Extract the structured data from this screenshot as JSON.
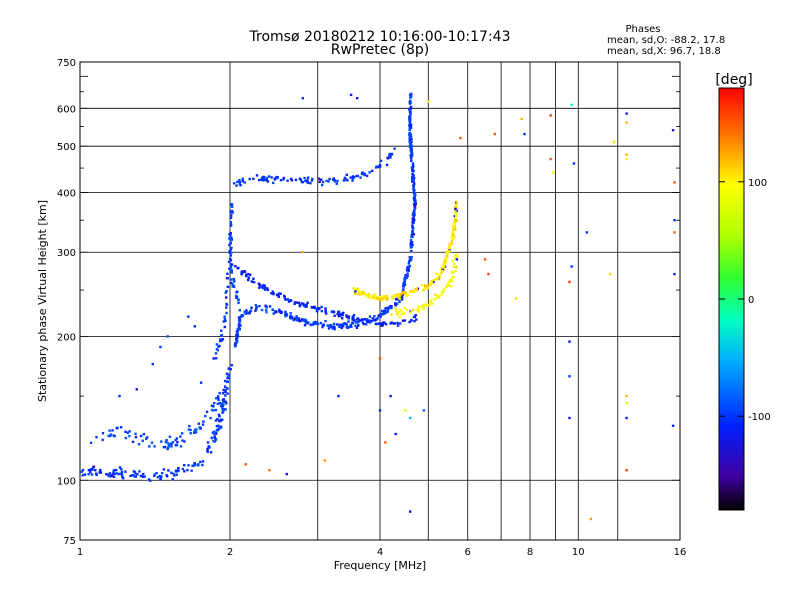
{
  "title": "Tromsø 20180212 10:16:00-10:17:43",
  "subtitle": "RwPretec (8p)",
  "stats": {
    "heading": "Phases",
    "line_o": "mean, sd,O: -88.2, 17.8",
    "line_x": "mean, sd,X:  96.7, 18.8"
  },
  "colorbar": {
    "unit": "[deg]",
    "ticks": [
      {
        "value": 100,
        "label": "100"
      },
      {
        "value": 0,
        "label": "0"
      },
      {
        "value": -100,
        "label": "-100"
      }
    ],
    "range": [
      -180,
      180
    ]
  },
  "chart_data": {
    "type": "scatter",
    "xlabel": "Frequency [MHz]",
    "ylabel": "Stationary phase Virtual Height [km]",
    "x_scale": "log",
    "y_scale": "log",
    "xlim": [
      1,
      16
    ],
    "ylim": [
      75,
      750
    ],
    "grid": true,
    "x_ticks": [
      {
        "value": 1,
        "label": "1"
      },
      {
        "value": 2,
        "label": "2"
      },
      {
        "value": 4,
        "label": "4"
      },
      {
        "value": 6,
        "label": "6"
      },
      {
        "value": 8,
        "label": "8"
      },
      {
        "value": 10,
        "label": "10"
      },
      {
        "value": 16,
        "label": "16"
      }
    ],
    "x_grid_extra": [
      3,
      5,
      7,
      9,
      12
    ],
    "y_ticks": [
      {
        "value": 75,
        "label": "75"
      },
      {
        "value": 100,
        "label": "100"
      },
      {
        "value": 200,
        "label": "200"
      },
      {
        "value": 300,
        "label": "300"
      },
      {
        "value": 400,
        "label": "400"
      },
      {
        "value": 500,
        "label": "500"
      },
      {
        "value": 600,
        "label": "600"
      },
      {
        "value": 750,
        "label": "750"
      }
    ],
    "traces": [
      {
        "points": [
          [
            1.0,
            105
          ],
          [
            1.15,
            103
          ],
          [
            1.3,
            103
          ],
          [
            1.45,
            102
          ],
          [
            1.6,
            104
          ],
          [
            1.75,
            110
          ],
          [
            1.85,
            120
          ],
          [
            1.95,
            145
          ],
          [
            2.0,
            175
          ]
        ],
        "phase": -100,
        "count": 180,
        "jx": 0.02,
        "jy": 0.035
      },
      {
        "points": [
          [
            1.05,
            120
          ],
          [
            1.2,
            128
          ],
          [
            1.4,
            118
          ],
          [
            1.6,
            120
          ],
          [
            1.8,
            135
          ],
          [
            1.95,
            150
          ]
        ],
        "phase": -95,
        "count": 90,
        "jx": 0.03,
        "jy": 0.05
      },
      {
        "points": [
          [
            1.85,
            175
          ],
          [
            1.95,
            210
          ],
          [
            2.0,
            300
          ],
          [
            2.02,
            380
          ]
        ],
        "phase": -100,
        "count": 60,
        "jx": 0.01,
        "jy": 0.03
      },
      {
        "points": [
          [
            2.05,
            190
          ],
          [
            2.1,
            220
          ],
          [
            2.25,
            230
          ],
          [
            2.5,
            225
          ],
          [
            2.8,
            215
          ],
          [
            3.2,
            210
          ],
          [
            3.6,
            212
          ],
          [
            4.0,
            220
          ],
          [
            4.4,
            240
          ],
          [
            4.6,
            290
          ],
          [
            4.7,
            380
          ],
          [
            4.65,
            450
          ],
          [
            4.6,
            520
          ],
          [
            4.6,
            640
          ]
        ],
        "phase": -98,
        "count": 460,
        "jx": 0.008,
        "jy": 0.025
      },
      {
        "points": [
          [
            2.05,
            280
          ],
          [
            2.3,
            255
          ],
          [
            2.7,
            235
          ],
          [
            3.2,
            225
          ],
          [
            3.7,
            215
          ],
          [
            4.3,
            212
          ],
          [
            4.8,
            218
          ]
        ],
        "phase": -110,
        "count": 160,
        "jx": 0.01,
        "jy": 0.02
      },
      {
        "points": [
          [
            2.05,
            420
          ],
          [
            2.3,
            430
          ],
          [
            2.7,
            425
          ],
          [
            3.1,
            420
          ],
          [
            3.5,
            430
          ],
          [
            3.8,
            440
          ],
          [
            4.1,
            460
          ],
          [
            4.3,
            500
          ]
        ],
        "phase": -100,
        "count": 110,
        "jx": 0.01,
        "jy": 0.025
      },
      {
        "points": [
          [
            2.0,
            330
          ],
          [
            2.02,
            260
          ],
          [
            2.1,
            230
          ]
        ],
        "phase": -90,
        "count": 40,
        "jx": 0.01,
        "jy": 0.04
      },
      {
        "points": [
          [
            3.5,
            250
          ],
          [
            4.0,
            240
          ],
          [
            4.5,
            245
          ],
          [
            5.0,
            255
          ],
          [
            5.3,
            270
          ],
          [
            5.6,
            320
          ],
          [
            5.7,
            380
          ]
        ],
        "phase": 105,
        "count": 210,
        "jx": 0.01,
        "jy": 0.02
      },
      {
        "points": [
          [
            4.2,
            225
          ],
          [
            4.7,
            225
          ],
          [
            5.2,
            240
          ],
          [
            5.6,
            265
          ],
          [
            5.7,
            300
          ]
        ],
        "phase": 95,
        "count": 80,
        "jx": 0.015,
        "jy": 0.03
      }
    ],
    "sparse_points": [
      [
        2.8,
        630,
        -100
      ],
      [
        3.5,
        640,
        -110
      ],
      [
        3.6,
        630,
        -110
      ],
      [
        5.0,
        620,
        95
      ],
      [
        5.8,
        520,
        150
      ],
      [
        6.8,
        530,
        150
      ],
      [
        7.7,
        570,
        120
      ],
      [
        7.8,
        530,
        -100
      ],
      [
        8.8,
        580,
        160
      ],
      [
        8.8,
        470,
        150
      ],
      [
        8.9,
        440,
        90
      ],
      [
        9.7,
        610,
        -20
      ],
      [
        9.8,
        460,
        -100
      ],
      [
        12.5,
        585,
        -120
      ],
      [
        12.5,
        560,
        120
      ],
      [
        12.5,
        480,
        120
      ],
      [
        12.5,
        470,
        100
      ],
      [
        11.8,
        510,
        110
      ],
      [
        15.5,
        540,
        -140
      ],
      [
        15.6,
        420,
        150
      ],
      [
        15.6,
        350,
        -100
      ],
      [
        15.6,
        330,
        150
      ],
      [
        15.6,
        270,
        -110
      ],
      [
        6.5,
        290,
        150
      ],
      [
        6.6,
        270,
        160
      ],
      [
        7.5,
        240,
        110
      ],
      [
        9.7,
        280,
        -100
      ],
      [
        9.6,
        260,
        160
      ],
      [
        10.4,
        330,
        -100
      ],
      [
        11.6,
        270,
        110
      ],
      [
        9.6,
        195,
        -110
      ],
      [
        9.6,
        165,
        -100
      ],
      [
        9.6,
        135,
        -110
      ],
      [
        12.5,
        150,
        120
      ],
      [
        12.5,
        145,
        80
      ],
      [
        12.5,
        135,
        -110
      ],
      [
        15.5,
        130,
        -110
      ],
      [
        12.5,
        105,
        160
      ],
      [
        10.6,
        83,
        130
      ],
      [
        4.6,
        86,
        -110
      ],
      [
        4.0,
        180,
        150
      ],
      [
        4.0,
        140,
        -100
      ],
      [
        4.2,
        150,
        -120
      ],
      [
        4.5,
        140,
        80
      ],
      [
        4.6,
        135,
        -40
      ],
      [
        4.3,
        125,
        -110
      ],
      [
        4.1,
        120,
        150
      ],
      [
        3.3,
        150,
        -110
      ],
      [
        2.8,
        300,
        120
      ],
      [
        4.9,
        140,
        -80
      ],
      [
        1.75,
        160,
        -100
      ],
      [
        1.4,
        175,
        -100
      ],
      [
        1.3,
        155,
        -120
      ],
      [
        1.2,
        150,
        -100
      ],
      [
        1.45,
        190,
        -100
      ],
      [
        1.5,
        200,
        -90
      ],
      [
        1.7,
        210,
        -110
      ],
      [
        1.65,
        220,
        -100
      ],
      [
        2.4,
        105,
        140
      ],
      [
        2.6,
        103,
        -110
      ],
      [
        3.1,
        110,
        130
      ],
      [
        2.15,
        108,
        150
      ]
    ]
  }
}
